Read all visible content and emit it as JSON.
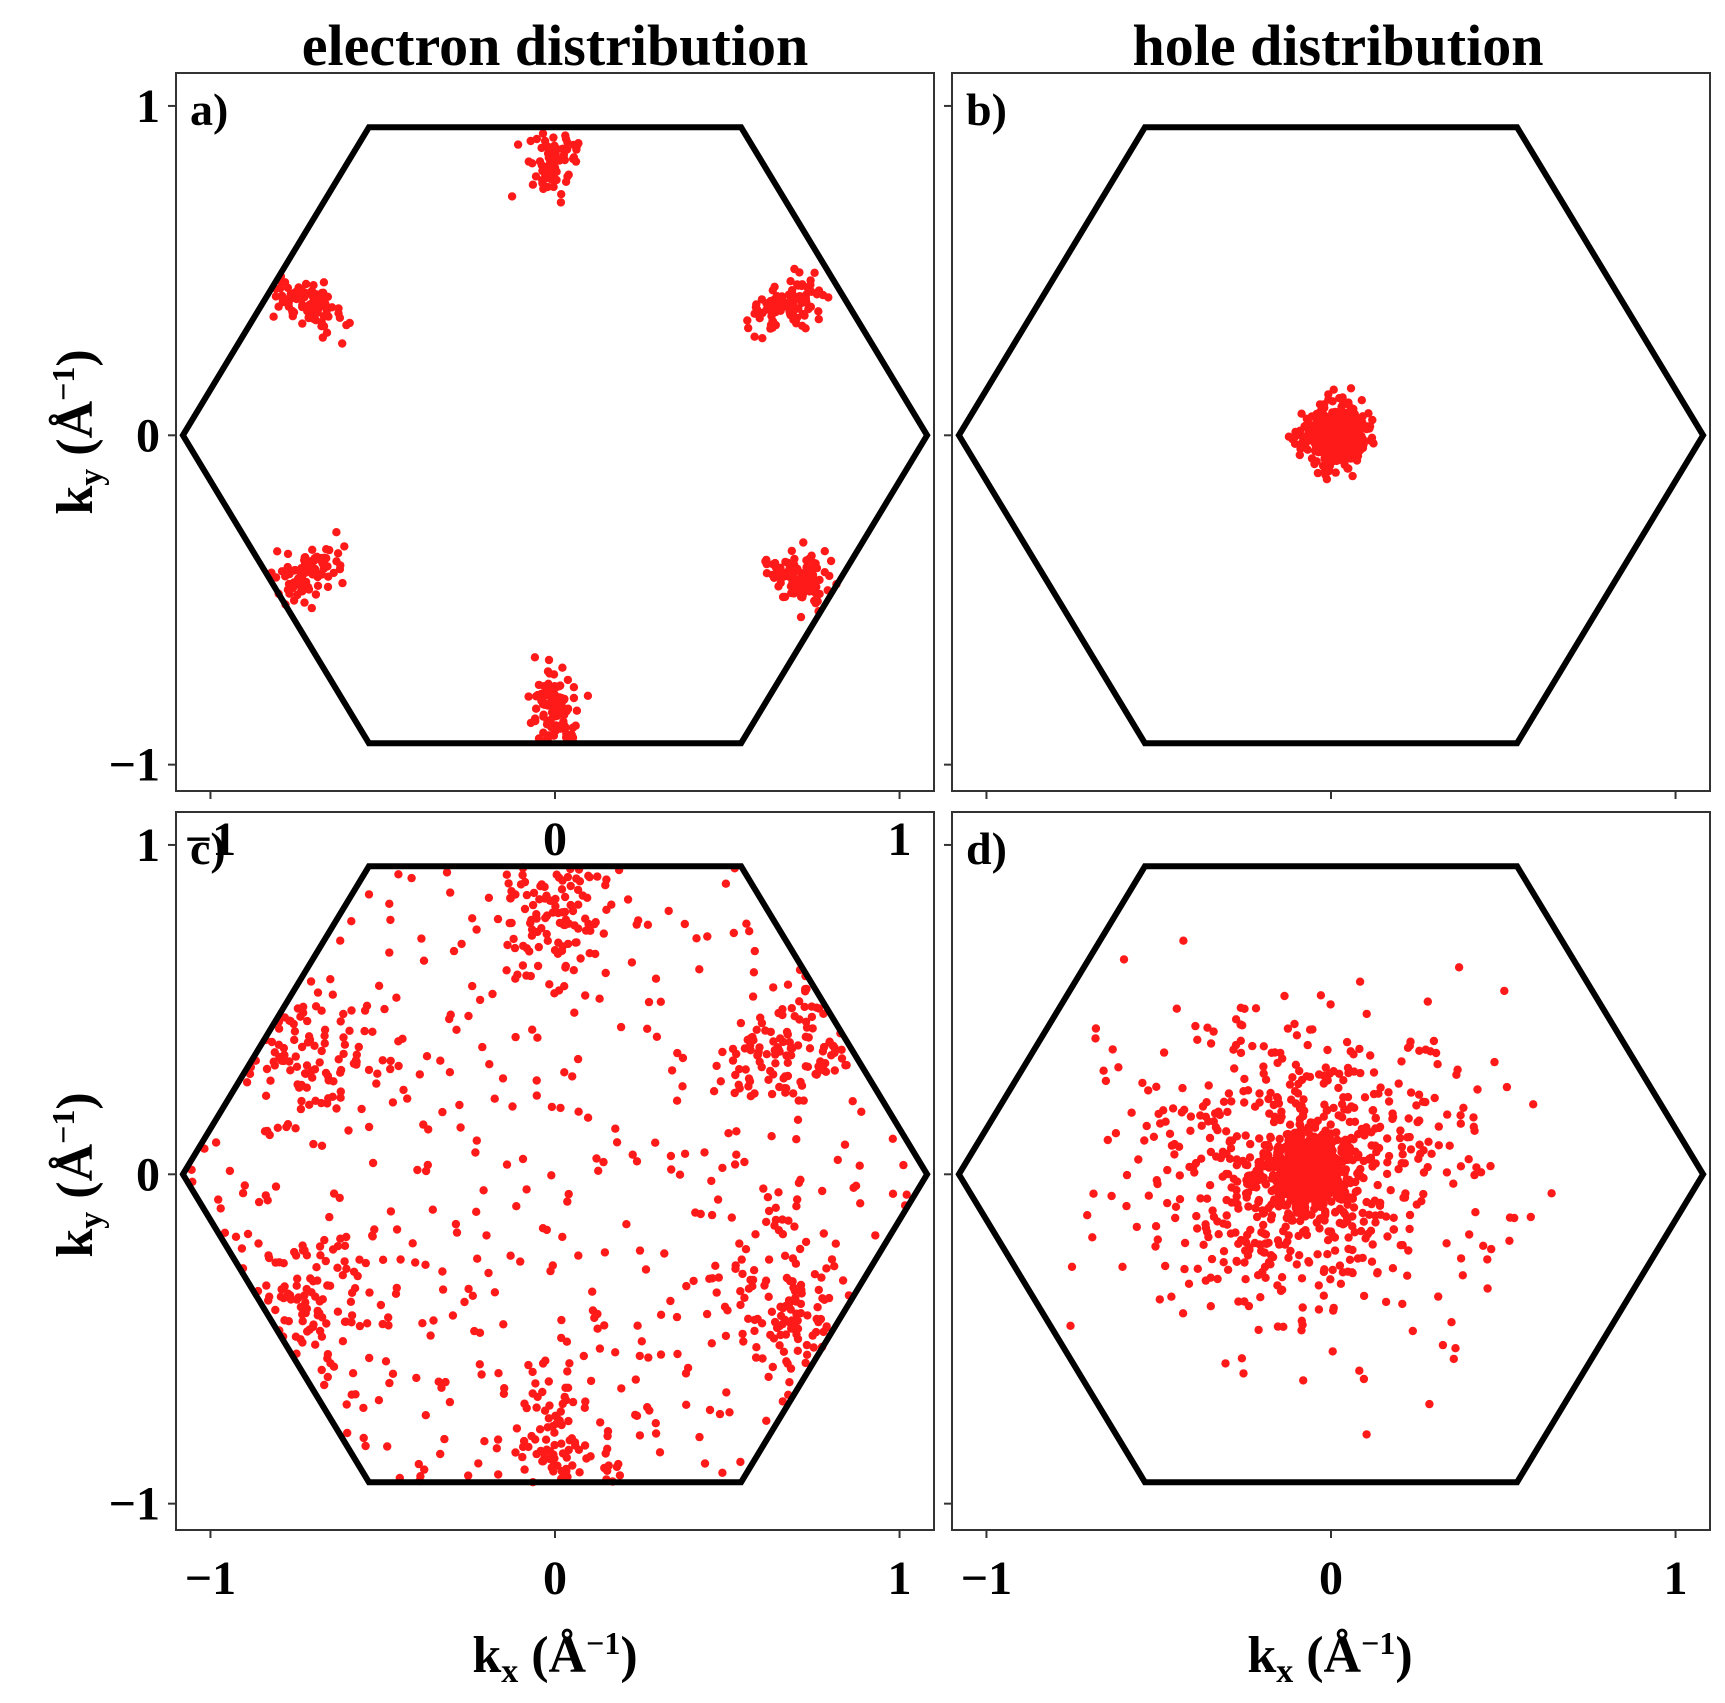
{
  "figure": {
    "column_titles": [
      "electron distribution",
      "hole distribution"
    ],
    "marker_color": "#ff1a1a",
    "frame_color": "#000000",
    "xlabel": {
      "main": "k",
      "sub": "x",
      "unit": "(Å",
      "sup": "−1",
      "close": ")"
    },
    "ylabel": {
      "main": "k",
      "sub": "y",
      "unit": "(Å",
      "sup": "−1",
      "close": ")"
    }
  },
  "chart_data": [
    {
      "id": "a",
      "type": "scatter",
      "panel_label": "a)",
      "title": "electron distribution",
      "xlim": [
        -1.1,
        1.1
      ],
      "ylim": [
        -1.08,
        1.1
      ],
      "xticks": [
        -1,
        0,
        1
      ],
      "yticks": [
        -1,
        0,
        1
      ],
      "xticklabels": [
        "−1",
        "0",
        "1"
      ],
      "yticklabels": [
        "−1",
        "0",
        "1"
      ],
      "brillouin_zone": [
        [
          1.08,
          0
        ],
        [
          0.54,
          0.935
        ],
        [
          -0.54,
          0.935
        ],
        [
          -1.08,
          0
        ],
        [
          -0.54,
          -0.935
        ],
        [
          0.54,
          -0.935
        ]
      ],
      "distribution": {
        "model": "valley-clusters",
        "count": 560,
        "seed": 11,
        "centers": [
          [
            0,
            0.84
          ],
          [
            0,
            -0.84
          ],
          [
            0.68,
            0.4
          ],
          [
            -0.72,
            0.4
          ],
          [
            -0.72,
            -0.42
          ],
          [
            0.72,
            -0.44
          ]
        ],
        "spread_tangential": 0.035,
        "spread_radial": 0.06
      }
    },
    {
      "id": "b",
      "type": "scatter",
      "panel_label": "b)",
      "title": "hole distribution",
      "xlim": [
        -1.1,
        1.1
      ],
      "ylim": [
        -1.08,
        1.1
      ],
      "xticks": [
        -1,
        0,
        1
      ],
      "yticks": [
        -1,
        0,
        1
      ],
      "xticklabels": [],
      "yticklabels": [],
      "brillouin_zone": [
        [
          1.08,
          0
        ],
        [
          0.54,
          0.935
        ],
        [
          -0.54,
          0.935
        ],
        [
          -1.08,
          0
        ],
        [
          -0.54,
          -0.935
        ],
        [
          0.54,
          -0.935
        ]
      ],
      "distribution": {
        "model": "central-gaussian",
        "count": 500,
        "seed": 23,
        "center": [
          0.01,
          0.0
        ],
        "sigma": 0.045
      }
    },
    {
      "id": "c",
      "type": "scatter",
      "panel_label": "c)",
      "title": "",
      "xlim": [
        -1.1,
        1.1
      ],
      "ylim": [
        -1.08,
        1.1
      ],
      "xticks": [
        -1,
        0,
        1
      ],
      "yticks": [
        -1,
        0,
        1
      ],
      "xticklabels": [
        "−1",
        "0",
        "1"
      ],
      "yticklabels": [
        "−1",
        "0",
        "1"
      ],
      "brillouin_zone": [
        [
          1.08,
          0
        ],
        [
          0.54,
          0.935
        ],
        [
          -0.54,
          0.935
        ],
        [
          -1.08,
          0
        ],
        [
          -0.54,
          -0.935
        ],
        [
          0.54,
          -0.935
        ]
      ],
      "distribution": {
        "model": "valley-clusters-plus-uniform",
        "count": 1000,
        "seed": 37,
        "centers": [
          [
            0,
            0.8
          ],
          [
            0,
            -0.8
          ],
          [
            0.68,
            0.38
          ],
          [
            -0.72,
            0.38
          ],
          [
            -0.72,
            -0.38
          ],
          [
            0.68,
            -0.42
          ]
        ],
        "cluster_fraction": 0.55,
        "spread_tangential": 0.09,
        "spread_radial": 0.12
      }
    },
    {
      "id": "d",
      "type": "scatter",
      "panel_label": "d)",
      "title": "",
      "xlim": [
        -1.1,
        1.1
      ],
      "ylim": [
        -1.08,
        1.1
      ],
      "xticks": [
        -1,
        0,
        1
      ],
      "yticks": [
        -1,
        0,
        1
      ],
      "xticklabels": [
        "−1",
        "0",
        "1"
      ],
      "yticklabels": [],
      "brillouin_zone": [
        [
          1.08,
          0
        ],
        [
          0.54,
          0.935
        ],
        [
          -0.54,
          0.935
        ],
        [
          -1.08,
          0
        ],
        [
          -0.54,
          -0.935
        ],
        [
          0.54,
          -0.935
        ]
      ],
      "distribution": {
        "model": "central-broad",
        "count": 1100,
        "seed": 53,
        "center": [
          -0.07,
          0.0
        ],
        "sigma_core": 0.07,
        "sigma_halo": 0.24,
        "core_fraction": 0.35
      }
    }
  ]
}
